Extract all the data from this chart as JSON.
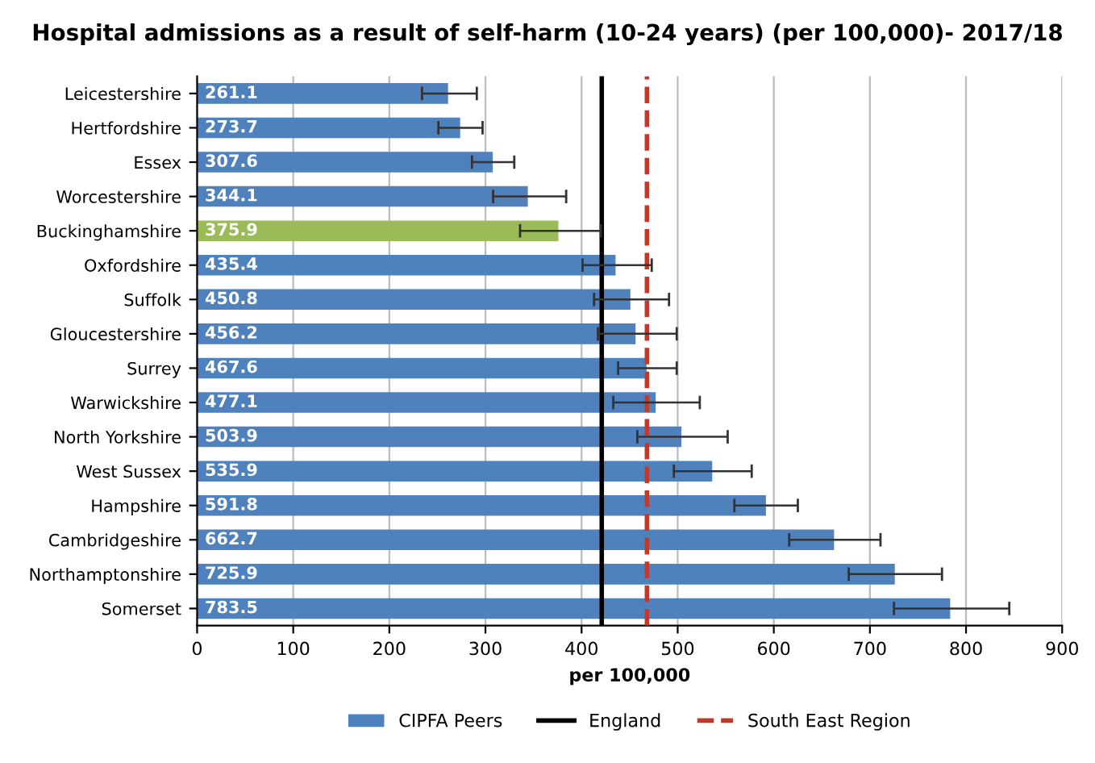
{
  "chart_data": {
    "type": "bar",
    "orientation": "horizontal",
    "title": "Hospital admissions as a result of self-harm (10-24 years) (per 100,000)- 2017/18",
    "xlabel": "per 100,000",
    "categories": [
      "Leicestershire",
      "Hertfordshire",
      "Essex",
      "Worcestershire",
      "Buckinghamshire",
      "Oxfordshire",
      "Suffolk",
      "Gloucestershire",
      "Surrey",
      "Warwickshire",
      "North Yorkshire",
      "West Sussex",
      "Hampshire",
      "Cambridgeshire",
      "Northamptonshire",
      "Somerset"
    ],
    "series": [
      {
        "name": "CIPFA Peers",
        "color": "#4f81bd",
        "colors": [
          "#4f81bd",
          "#4f81bd",
          "#4f81bd",
          "#4f81bd",
          "#9bbb59",
          "#4f81bd",
          "#4f81bd",
          "#4f81bd",
          "#4f81bd",
          "#4f81bd",
          "#4f81bd",
          "#4f81bd",
          "#4f81bd",
          "#4f81bd",
          "#4f81bd",
          "#4f81bd"
        ],
        "values": [
          261.1,
          273.7,
          307.6,
          344.1,
          375.9,
          435.4,
          450.8,
          456.2,
          467.6,
          477.1,
          503.9,
          535.9,
          591.8,
          662.7,
          725.9,
          783.5
        ],
        "errors": [
          [
            234,
            291
          ],
          [
            251,
            297
          ],
          [
            286,
            330
          ],
          [
            308,
            384
          ],
          [
            336,
            420
          ],
          [
            401,
            473
          ],
          [
            413,
            491
          ],
          [
            417,
            499
          ],
          [
            438,
            499
          ],
          [
            433,
            523
          ],
          [
            458,
            552
          ],
          [
            496,
            577
          ],
          [
            559,
            625
          ],
          [
            616,
            711
          ],
          [
            678,
            775
          ],
          [
            725,
            845
          ]
        ]
      }
    ],
    "ref_lines": [
      {
        "axis": "x",
        "value": 421,
        "label": "England",
        "color": "#000000",
        "line_style": "solid"
      },
      {
        "axis": "x",
        "value": 468,
        "label": "South East Region",
        "color": "#c0392b",
        "line_style": "dashed"
      }
    ],
    "xlim": [
      0,
      900
    ],
    "xticks": [
      0,
      100,
      200,
      300,
      400,
      500,
      600,
      700,
      800,
      900
    ],
    "grid": "x",
    "legend": "bottom",
    "data_labels": true
  }
}
